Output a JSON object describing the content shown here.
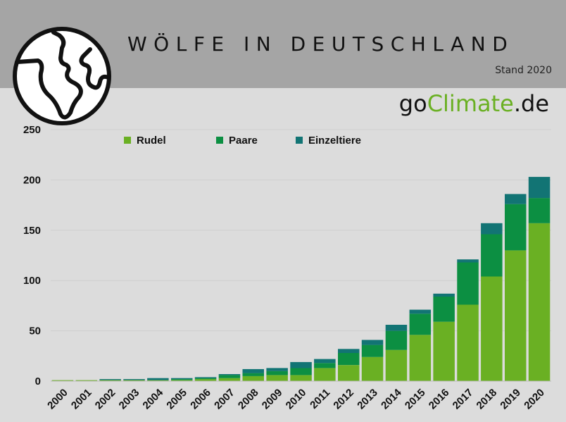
{
  "header": {
    "title": "WÖLFE IN DEUTSCHLAND",
    "stand": "Stand 2020",
    "background": "#a5a5a5"
  },
  "brand": {
    "go": "go",
    "climate": "Climate",
    "de": ".de",
    "accent": "#6ab023"
  },
  "icons": {
    "globe": "globe-icon"
  },
  "chart_data": {
    "type": "bar",
    "stacked": true,
    "categories": [
      "2000",
      "2001",
      "2002",
      "2003",
      "2004",
      "2005",
      "2006",
      "2007",
      "2008",
      "2009",
      "2010",
      "2011",
      "2012",
      "2013",
      "2014",
      "2015",
      "2016",
      "2017",
      "2018",
      "2019",
      "2020"
    ],
    "series": [
      {
        "name": "Rudel",
        "color": "#6ab023",
        "values": [
          1,
          1,
          1,
          1,
          1,
          1,
          2,
          3,
          5,
          6,
          6,
          13,
          16,
          24,
          31,
          46,
          59,
          76,
          104,
          130,
          157
        ]
      },
      {
        "name": "Paare",
        "color": "#0c8f42",
        "values": [
          0,
          0,
          0,
          0,
          0,
          1,
          1,
          3,
          3,
          4,
          7,
          5,
          12,
          12,
          19,
          21,
          25,
          42,
          42,
          46,
          25
        ]
      },
      {
        "name": "Einzeltiere",
        "color": "#127474",
        "values": [
          0,
          0,
          1,
          1,
          2,
          1,
          1,
          1,
          4,
          3,
          6,
          4,
          4,
          5,
          6,
          4,
          3,
          3,
          11,
          10,
          21
        ]
      }
    ],
    "ylim": [
      0,
      250
    ],
    "yticks": [
      0,
      50,
      100,
      150,
      200,
      250
    ],
    "grid": true,
    "legend_position": "top"
  }
}
